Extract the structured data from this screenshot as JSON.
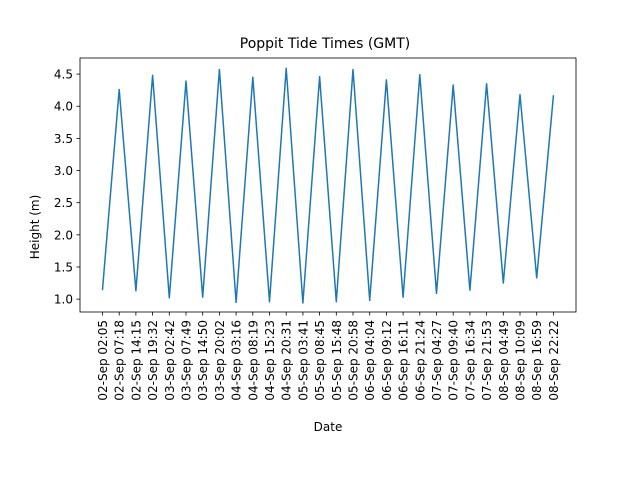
{
  "chart_data": {
    "type": "line",
    "title": "Poppit Tide Times (GMT)",
    "xlabel": "Date",
    "ylabel": "Height (m)",
    "ylim": [
      0.8,
      4.75
    ],
    "y_ticks": [
      "1.0",
      "1.5",
      "2.0",
      "2.5",
      "3.0",
      "3.5",
      "4.0",
      "4.5"
    ],
    "grid": false,
    "legend": "none",
    "categories": [
      "02-Sep 02:05",
      "02-Sep 07:18",
      "02-Sep 14:15",
      "02-Sep 19:32",
      "03-Sep 02:42",
      "03-Sep 07:49",
      "03-Sep 14:50",
      "03-Sep 20:02",
      "04-Sep 03:16",
      "04-Sep 08:19",
      "04-Sep 15:23",
      "04-Sep 20:31",
      "05-Sep 03:41",
      "05-Sep 08:45",
      "05-Sep 15:48",
      "05-Sep 20:58",
      "06-Sep 04:04",
      "06-Sep 09:12",
      "06-Sep 16:11",
      "06-Sep 21:24",
      "07-Sep 04:27",
      "07-Sep 09:40",
      "07-Sep 16:34",
      "07-Sep 21:53",
      "08-Sep 04:49",
      "08-Sep 10:09",
      "08-Sep 16:59",
      "08-Sep 22:22"
    ],
    "values": [
      1.15,
      4.26,
      1.13,
      4.48,
      1.02,
      4.39,
      1.03,
      4.57,
      0.95,
      4.45,
      0.96,
      4.59,
      0.94,
      4.46,
      0.96,
      4.57,
      0.98,
      4.41,
      1.03,
      4.49,
      1.09,
      4.33,
      1.14,
      4.35,
      1.25,
      4.18,
      1.33,
      4.16
    ],
    "line_color": "#1f77b4"
  }
}
